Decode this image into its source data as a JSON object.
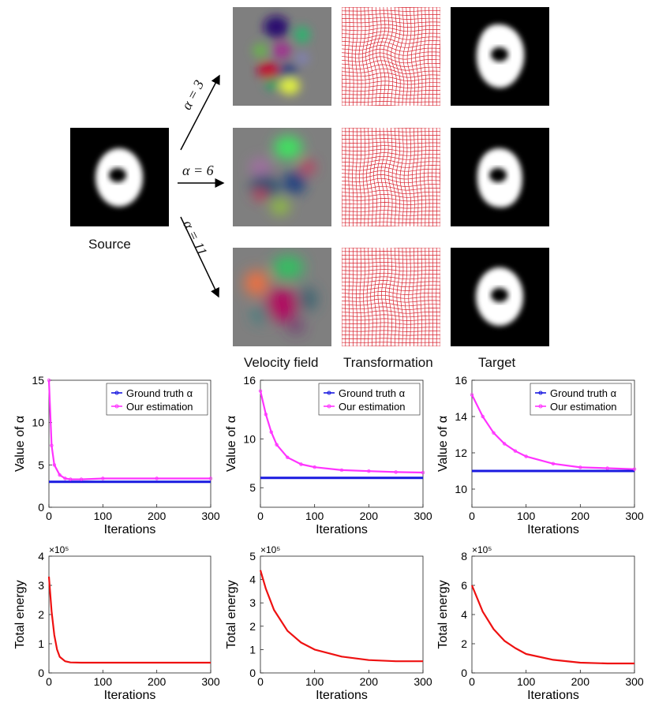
{
  "figure": {
    "source_caption": "Source",
    "column_captions": [
      "Velocity field",
      "Transformation",
      "Target"
    ],
    "alpha_labels": [
      "α = 3",
      "α = 6",
      "α = 11"
    ]
  },
  "colors": {
    "ground_truth": "#1a1ae0",
    "estimation": "#ff33ff",
    "energy": "#ee1111",
    "grid": "#d9222e"
  },
  "chart_data": [
    {
      "type": "line",
      "id": "alpha-3",
      "xlabel": "Iterations",
      "ylabel": "Value of α",
      "xlim": [
        0,
        300
      ],
      "ylim": [
        0,
        15
      ],
      "xticks": [
        0,
        100,
        200,
        300
      ],
      "yticks": [
        0,
        5,
        10,
        15
      ],
      "legend": [
        "Ground truth α",
        "Our estimation"
      ],
      "legend_location": "top-right",
      "series": [
        {
          "name": "Ground truth α",
          "x": [
            0,
            300
          ],
          "y": [
            3,
            3
          ]
        },
        {
          "name": "Our estimation",
          "x": [
            0,
            5,
            10,
            20,
            30,
            40,
            60,
            100,
            200,
            300
          ],
          "y": [
            15,
            7.3,
            5.0,
            3.8,
            3.4,
            3.3,
            3.3,
            3.4,
            3.4,
            3.4
          ]
        }
      ]
    },
    {
      "type": "line",
      "id": "alpha-6",
      "xlabel": "Iterations",
      "ylabel": "Value of α",
      "xlim": [
        0,
        300
      ],
      "ylim": [
        3,
        16
      ],
      "xticks": [
        0,
        100,
        200,
        300
      ],
      "yticks": [
        5,
        10,
        16
      ],
      "legend": [
        "Ground truth α",
        "Our estimation"
      ],
      "legend_location": "top-right",
      "series": [
        {
          "name": "Ground truth α",
          "x": [
            0,
            300
          ],
          "y": [
            6,
            6
          ]
        },
        {
          "name": "Our estimation",
          "x": [
            0,
            10,
            20,
            30,
            50,
            75,
            100,
            150,
            200,
            250,
            300
          ],
          "y": [
            14.9,
            12.5,
            10.7,
            9.4,
            8.1,
            7.4,
            7.1,
            6.8,
            6.7,
            6.6,
            6.55
          ]
        }
      ]
    },
    {
      "type": "line",
      "id": "alpha-11",
      "xlabel": "Iterations",
      "ylabel": "Value of α",
      "xlim": [
        0,
        300
      ],
      "ylim": [
        9,
        16
      ],
      "xticks": [
        0,
        100,
        200,
        300
      ],
      "yticks": [
        10,
        12,
        14,
        16
      ],
      "legend": [
        "Ground truth α",
        "Our estimation"
      ],
      "legend_location": "top-right",
      "series": [
        {
          "name": "Ground truth α",
          "x": [
            0,
            300
          ],
          "y": [
            11,
            11
          ]
        },
        {
          "name": "Our estimation",
          "x": [
            0,
            20,
            40,
            60,
            80,
            100,
            150,
            200,
            250,
            300
          ],
          "y": [
            15.2,
            14.0,
            13.1,
            12.5,
            12.1,
            11.8,
            11.4,
            11.2,
            11.15,
            11.1
          ]
        }
      ]
    },
    {
      "type": "line",
      "id": "energy-3",
      "xlabel": "Iterations",
      "ylabel": "Total energy",
      "xlim": [
        0,
        300
      ],
      "ylim": [
        0,
        4
      ],
      "y_scale_label": "×10⁵",
      "xticks": [
        0,
        100,
        200,
        300
      ],
      "yticks": [
        0,
        1,
        2,
        3,
        4
      ],
      "series": [
        {
          "name": "Total energy",
          "x": [
            0,
            5,
            10,
            15,
            20,
            30,
            40,
            60,
            100,
            200,
            300
          ],
          "y": [
            3.3,
            2.1,
            1.3,
            0.8,
            0.55,
            0.4,
            0.36,
            0.35,
            0.35,
            0.35,
            0.35
          ]
        }
      ]
    },
    {
      "type": "line",
      "id": "energy-6",
      "xlabel": "Iterations",
      "ylabel": "Total energy",
      "xlim": [
        0,
        300
      ],
      "ylim": [
        0,
        5
      ],
      "y_scale_label": "×10⁵",
      "xticks": [
        0,
        100,
        200,
        300
      ],
      "yticks": [
        0,
        1,
        2,
        3,
        4,
        5
      ],
      "series": [
        {
          "name": "Total energy",
          "x": [
            0,
            10,
            25,
            50,
            75,
            100,
            150,
            200,
            250,
            300
          ],
          "y": [
            4.4,
            3.6,
            2.7,
            1.8,
            1.3,
            1.0,
            0.7,
            0.55,
            0.5,
            0.5
          ]
        }
      ]
    },
    {
      "type": "line",
      "id": "energy-11",
      "xlabel": "Iterations",
      "ylabel": "Total energy",
      "xlim": [
        0,
        300
      ],
      "ylim": [
        0,
        8
      ],
      "y_scale_label": "×10⁵",
      "xticks": [
        0,
        100,
        200,
        300
      ],
      "yticks": [
        0,
        2,
        4,
        6,
        8
      ],
      "series": [
        {
          "name": "Total energy",
          "x": [
            0,
            20,
            40,
            60,
            80,
            100,
            150,
            200,
            250,
            300
          ],
          "y": [
            6.0,
            4.2,
            3.0,
            2.2,
            1.7,
            1.3,
            0.9,
            0.7,
            0.65,
            0.65
          ]
        }
      ]
    }
  ]
}
